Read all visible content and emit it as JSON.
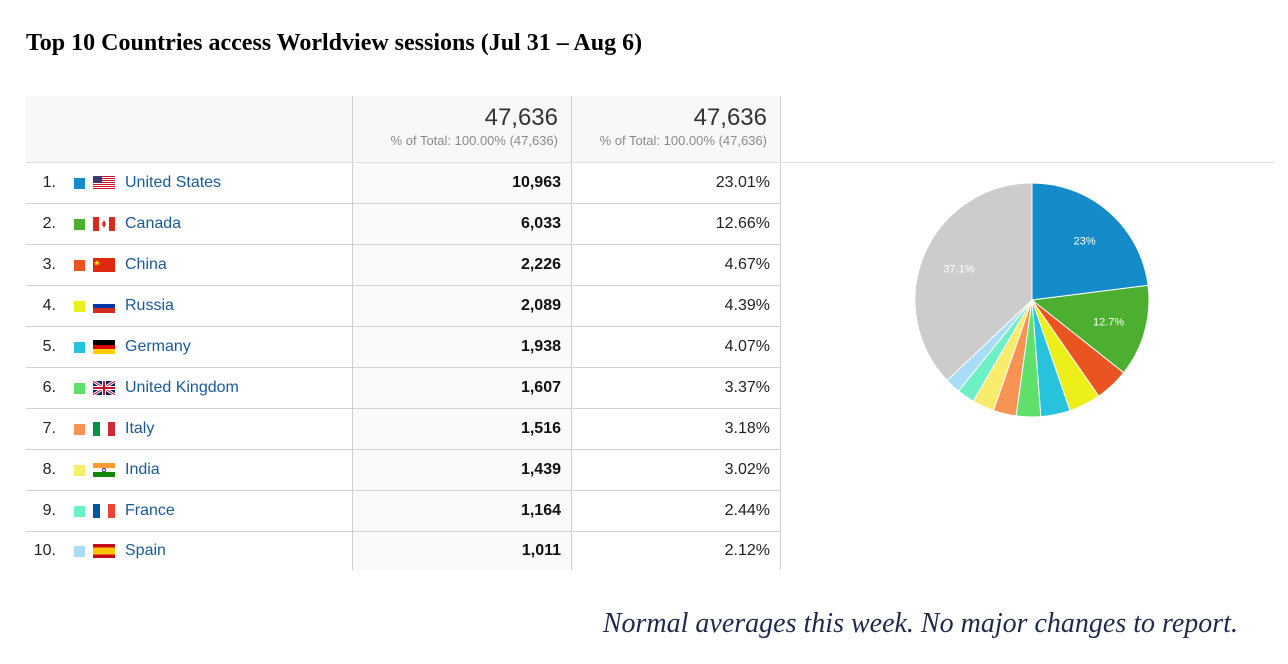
{
  "title": "Top 10 Countries access Worldview sessions (Jul 31 – Aug 6)",
  "header": {
    "sessions_total": "47,636",
    "sessions_subtitle": "% of Total: 100.00% (47,636)",
    "percent_total": "47,636",
    "percent_subtitle": "% of Total: 100.00% (47,636)"
  },
  "rows": [
    {
      "index": "1.",
      "country": "United States",
      "sessions": "10,963",
      "percent": "23.01%",
      "color": "#168bc9",
      "flag": "us-flag-icon"
    },
    {
      "index": "2.",
      "country": "Canada",
      "sessions": "6,033",
      "percent": "12.66%",
      "color": "#4caf2f",
      "flag": "canada-flag-icon"
    },
    {
      "index": "3.",
      "country": "China",
      "sessions": "2,226",
      "percent": "4.67%",
      "color": "#ea5420",
      "flag": "china-flag-icon"
    },
    {
      "index": "4.",
      "country": "Russia",
      "sessions": "2,089",
      "percent": "4.39%",
      "color": "#ecef1a",
      "flag": "russia-flag-icon"
    },
    {
      "index": "5.",
      "country": "Germany",
      "sessions": "1,938",
      "percent": "4.07%",
      "color": "#27c3dd",
      "flag": "germany-flag-icon"
    },
    {
      "index": "6.",
      "country": "United Kingdom",
      "sessions": "1,607",
      "percent": "3.37%",
      "color": "#5fe06b",
      "flag": "uk-flag-icon"
    },
    {
      "index": "7.",
      "country": "Italy",
      "sessions": "1,516",
      "percent": "3.18%",
      "color": "#f79454",
      "flag": "italy-flag-icon"
    },
    {
      "index": "8.",
      "country": "India",
      "sessions": "1,439",
      "percent": "3.02%",
      "color": "#f8ec6c",
      "flag": "india-flag-icon"
    },
    {
      "index": "9.",
      "country": "France",
      "sessions": "1,164",
      "percent": "2.44%",
      "color": "#6df0c6",
      "flag": "france-flag-icon"
    },
    {
      "index": "10.",
      "country": "Spain",
      "sessions": "1,011",
      "percent": "2.12%",
      "color": "#a9dcf7",
      "flag": "spain-flag-icon"
    }
  ],
  "chart_data": {
    "type": "pie",
    "categories": [
      "United States",
      "Canada",
      "China",
      "Russia",
      "Germany",
      "United Kingdom",
      "Italy",
      "India",
      "France",
      "Spain",
      "(other)"
    ],
    "values": [
      23.01,
      12.66,
      4.67,
      4.39,
      4.07,
      3.37,
      3.18,
      3.02,
      2.44,
      2.12,
      37.07
    ],
    "colors": [
      "#168bc9",
      "#4caf2f",
      "#ea5420",
      "#ecef1a",
      "#27c3dd",
      "#5fe06b",
      "#f79454",
      "#f8ec6c",
      "#6df0c6",
      "#a9dcf7",
      "#cccccc"
    ],
    "slice_labels": [
      "23%",
      "12.7%",
      "",
      "",
      "",
      "",
      "",
      "",
      "",
      "",
      "37.1%"
    ]
  },
  "footer_note": "Normal averages this week.  No major changes to report."
}
